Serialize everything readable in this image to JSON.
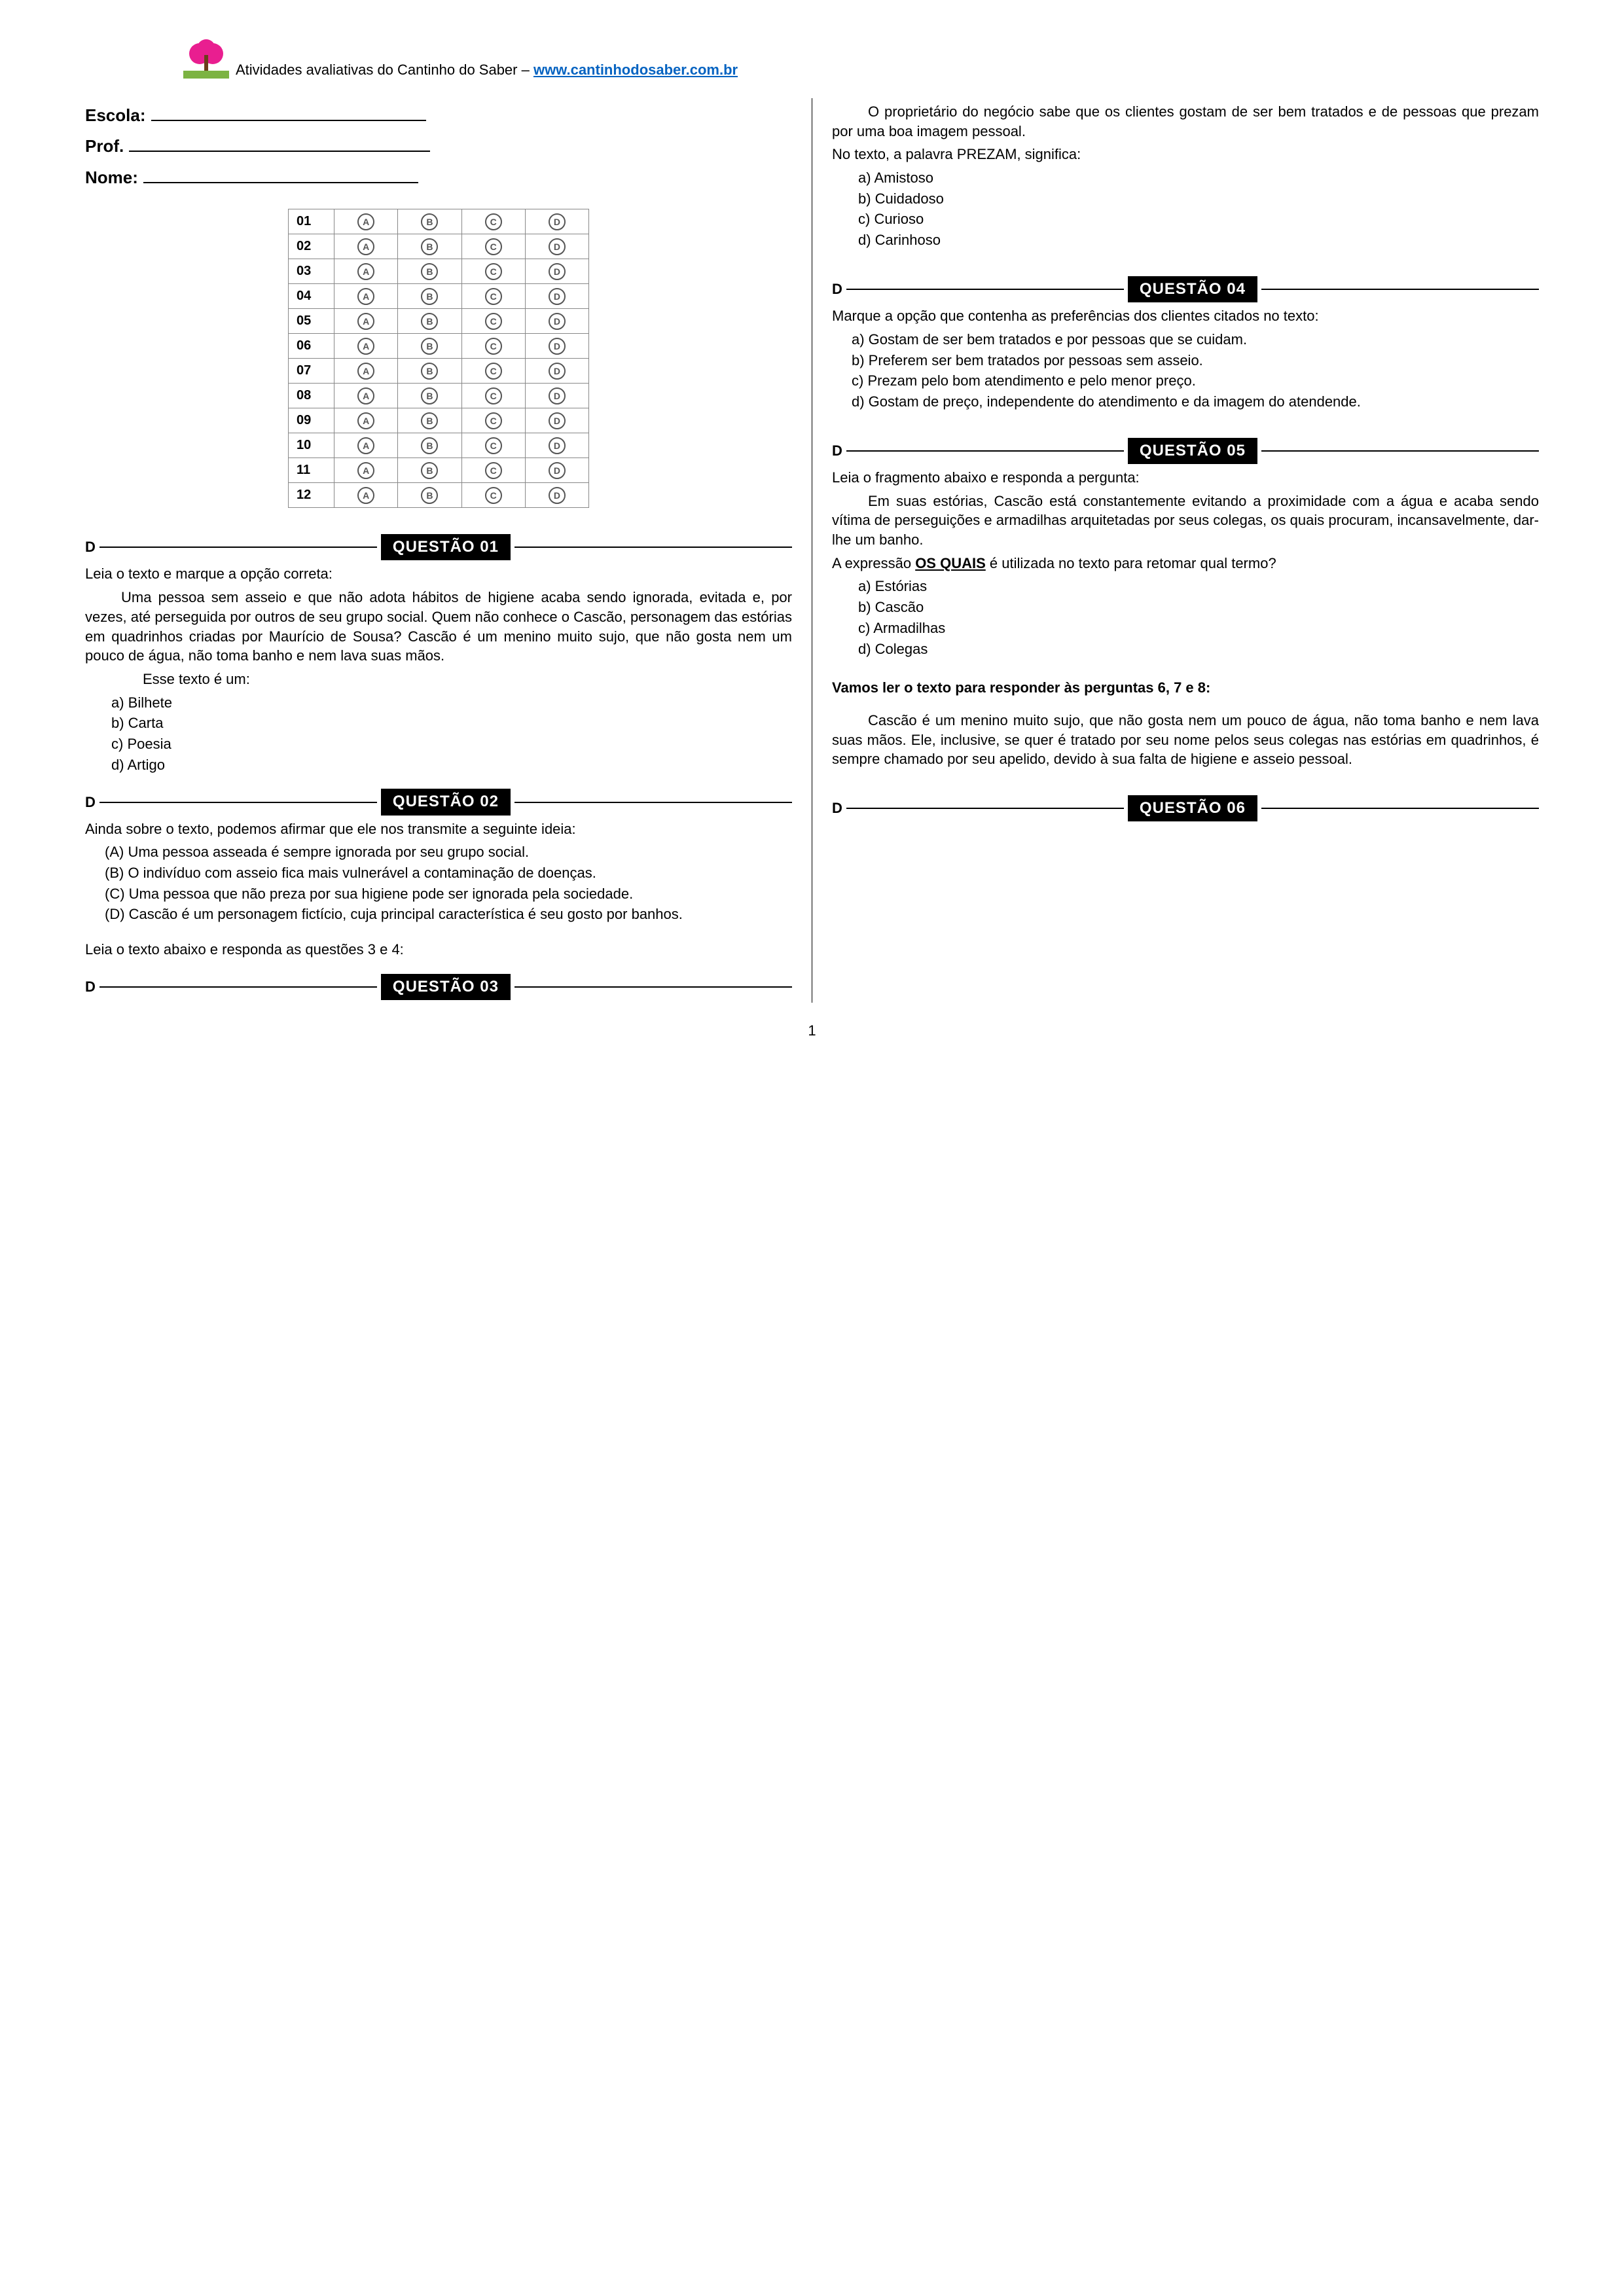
{
  "header": {
    "text_prefix": "Atividades avaliativas do Cantinho do Saber – ",
    "link_text": "www.cantinhodosaber.com.br"
  },
  "fields": {
    "escola": "Escola:",
    "prof": "Prof.",
    "nome": "Nome:"
  },
  "answer_grid": {
    "rows": [
      "01",
      "02",
      "03",
      "04",
      "05",
      "06",
      "07",
      "08",
      "09",
      "10",
      "11",
      "12"
    ],
    "choices": [
      "A",
      "B",
      "C",
      "D"
    ]
  },
  "q1": {
    "label": "QUESTÃO 01",
    "d": "D",
    "intro": "Leia o texto e marque a opção correta:",
    "body": "Uma pessoa sem asseio e que não adota hábitos de higiene acaba sendo ignorada, evitada e, por vezes, até perseguida por outros de seu grupo social. Quem não conhece o Cascão, personagem das estórias em quadrinhos criadas por Maurício de Sousa? Cascão é um menino muito sujo, que não gosta nem um pouco de água, não toma banho e nem lava suas mãos.",
    "prompt": "Esse texto é um:",
    "opts": {
      "a": "a) Bilhete",
      "b": "b) Carta",
      "c": "c) Poesia",
      "d": "d) Artigo"
    }
  },
  "q2": {
    "label": "QUESTÃO 02",
    "d": "D",
    "intro": "Ainda sobre o texto, podemos afirmar que ele nos transmite a seguinte ideia:",
    "opts": {
      "a": "(A) Uma pessoa asseada é sempre ignorada por seu grupo social.",
      "b": "(B) O indivíduo com asseio fica mais vulnerável a contaminação de doenças.",
      "c": "(C) Uma pessoa que não preza por sua higiene pode ser ignorada pela sociedade.",
      "d": "(D) Cascão é um personagem fictício, cuja principal característica é seu gosto por banhos."
    }
  },
  "pre_q3": "Leia o texto abaixo e responda as questões 3 e 4:",
  "q3": {
    "label": "QUESTÃO 03",
    "d": "D",
    "body": "O proprietário do negócio sabe que os clientes gostam de ser bem tratados e de pessoas que prezam por uma boa imagem pessoal.",
    "prompt": "No texto, a palavra PREZAM, significa:",
    "opts": {
      "a": "a) Amistoso",
      "b": "b) Cuidadoso",
      "c": "c) Curioso",
      "d": "d) Carinhoso"
    }
  },
  "q4": {
    "label": "QUESTÃO 04",
    "d": "D",
    "intro": "Marque a opção que contenha as preferências dos clientes citados no texto:",
    "opts": {
      "a": "a) Gostam de ser bem tratados e por pessoas que se cuidam.",
      "b": "b) Preferem ser bem tratados por pessoas sem asseio.",
      "c": "c) Prezam pelo bom atendimento e pelo menor preço.",
      "d": "d) Gostam de preço, independente do atendimento e da imagem do atendende."
    }
  },
  "q5": {
    "label": "QUESTÃO 05",
    "d": "D",
    "intro": "Leia o fragmento abaixo e responda a pergunta:",
    "body": "Em suas estórias, Cascão está constantemente evitando a proximidade com a água e acaba sendo vítima de perseguições e armadilhas arquitetadas por seus colegas, os quais procuram, incansavelmente, dar-lhe um banho.",
    "prompt_pre": "A expressão ",
    "prompt_bold": "OS QUAIS",
    "prompt_post": " é utilizada no texto para retomar qual termo?",
    "opts": {
      "a": "a) Estórias",
      "b": "b) Cascão",
      "c": "c) Armadilhas",
      "d": "d) Colegas"
    }
  },
  "pre_q6": "Vamos ler o texto para responder às perguntas 6, 7 e 8:",
  "q6_body": "Cascão é um menino muito sujo, que não gosta nem um pouco de água, não toma banho e nem lava suas mãos. Ele, inclusive, se quer é tratado por seu nome pelos seus colegas nas estórias em quadrinhos, é sempre chamado por seu apelido, devido à sua falta de higiene e asseio pessoal.",
  "q6": {
    "label": "QUESTÃO 06",
    "d": "D"
  },
  "page_number": "1"
}
